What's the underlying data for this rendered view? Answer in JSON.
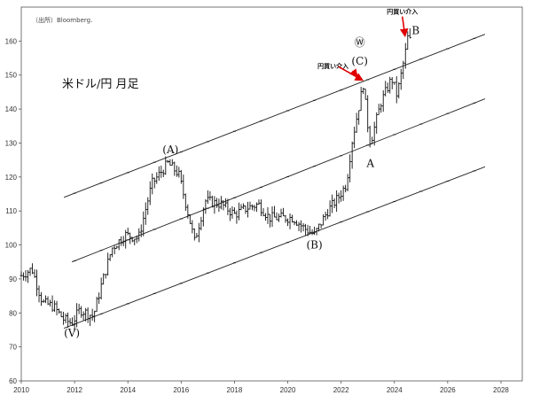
{
  "chart_data": {
    "type": "ohlc",
    "title": "米ドル/円 月足",
    "source": "（出所）Bloomberg.",
    "xlim": [
      2010,
      2028.8
    ],
    "ylim": [
      60,
      170
    ],
    "x_ticks": [
      2010,
      2012,
      2014,
      2016,
      2018,
      2020,
      2022,
      2024,
      2026,
      2028
    ],
    "y_ticks": [
      60,
      70,
      80,
      90,
      100,
      110,
      120,
      130,
      140,
      150,
      160
    ],
    "series_points": [
      [
        2010.0,
        91
      ],
      [
        2010.4,
        93
      ],
      [
        2010.8,
        83
      ],
      [
        2011.2,
        82
      ],
      [
        2011.6,
        78
      ],
      [
        2011.9,
        77
      ],
      [
        2012.2,
        81
      ],
      [
        2012.7,
        79
      ],
      [
        2013.0,
        88
      ],
      [
        2013.4,
        99
      ],
      [
        2013.9,
        103
      ],
      [
        2014.4,
        102
      ],
      [
        2014.9,
        118
      ],
      [
        2015.5,
        124
      ],
      [
        2015.9,
        121
      ],
      [
        2016.3,
        108
      ],
      [
        2016.5,
        101
      ],
      [
        2016.9,
        113
      ],
      [
        2017.5,
        112
      ],
      [
        2018.0,
        109
      ],
      [
        2018.5,
        111
      ],
      [
        2018.9,
        112
      ],
      [
        2019.3,
        108
      ],
      [
        2019.8,
        108
      ],
      [
        2020.2,
        108
      ],
      [
        2020.6,
        105
      ],
      [
        2021.0,
        103
      ],
      [
        2021.5,
        110
      ],
      [
        2021.9,
        114
      ],
      [
        2022.2,
        118
      ],
      [
        2022.4,
        130
      ],
      [
        2022.6,
        138
      ],
      [
        2022.85,
        148
      ],
      [
        2022.95,
        138
      ],
      [
        2023.1,
        130
      ],
      [
        2023.5,
        142
      ],
      [
        2023.9,
        149
      ],
      [
        2024.1,
        144
      ],
      [
        2024.4,
        156
      ],
      [
        2024.5,
        161
      ],
      [
        2024.6,
        160
      ]
    ],
    "channel_lines": [
      {
        "from": [
          2011.6,
          114
        ],
        "to": [
          2027.4,
          162
        ]
      },
      {
        "from": [
          2011.9,
          95
        ],
        "to": [
          2027.4,
          143
        ]
      },
      {
        "from": [
          2011.6,
          75.5
        ],
        "to": [
          2027.4,
          123
        ]
      }
    ],
    "labels": [
      {
        "text": "(Ⅴ)",
        "x": 2011.9,
        "y": 73
      },
      {
        "text": "(A)",
        "x": 2015.6,
        "y": 127
      },
      {
        "text": "(B)",
        "x": 2021.0,
        "y": 99
      },
      {
        "text": "(C)",
        "x": 2022.7,
        "y": 153
      },
      {
        "text": "Ⓦ",
        "x": 2022.7,
        "y": 158.5
      },
      {
        "text": "A",
        "x": 2023.1,
        "y": 123
      },
      {
        "text": "B",
        "x": 2024.8,
        "y": 162
      }
    ],
    "annotations": [
      {
        "text": "円買い介入",
        "x": 2021.7,
        "y": 152,
        "arrow_to": [
          2022.6,
          149
        ]
      },
      {
        "text": "円買い介入",
        "x": 2024.3,
        "y": 168,
        "arrow_to": [
          2024.4,
          161
        ]
      }
    ],
    "extra_arrows": [
      {
        "from": [
          2021.9,
          152.5
        ],
        "to": [
          2022.8,
          148.5
        ]
      }
    ]
  }
}
